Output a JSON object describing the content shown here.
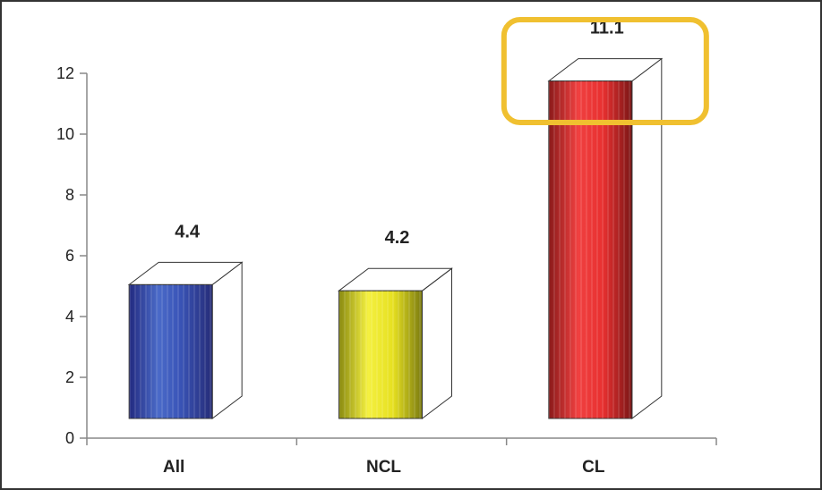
{
  "chart_data": {
    "type": "bar",
    "categories": [
      "All",
      "NCL",
      "CL"
    ],
    "values": [
      4.4,
      4.2,
      11.1
    ],
    "value_labels": [
      "4.4",
      "4.2",
      "11.1"
    ],
    "ylim": [
      0,
      12
    ],
    "yticks": [
      0,
      2,
      4,
      6,
      8,
      10,
      12
    ],
    "ytick_labels": [
      "0",
      "2",
      "4",
      "6",
      "8",
      "10",
      "12"
    ],
    "grid": false,
    "style": "3d-bar",
    "highlight": {
      "category": "CL",
      "color": "#f0c030"
    },
    "colors": [
      "#3a4aa8",
      "#e8e020",
      "#e83030"
    ]
  }
}
